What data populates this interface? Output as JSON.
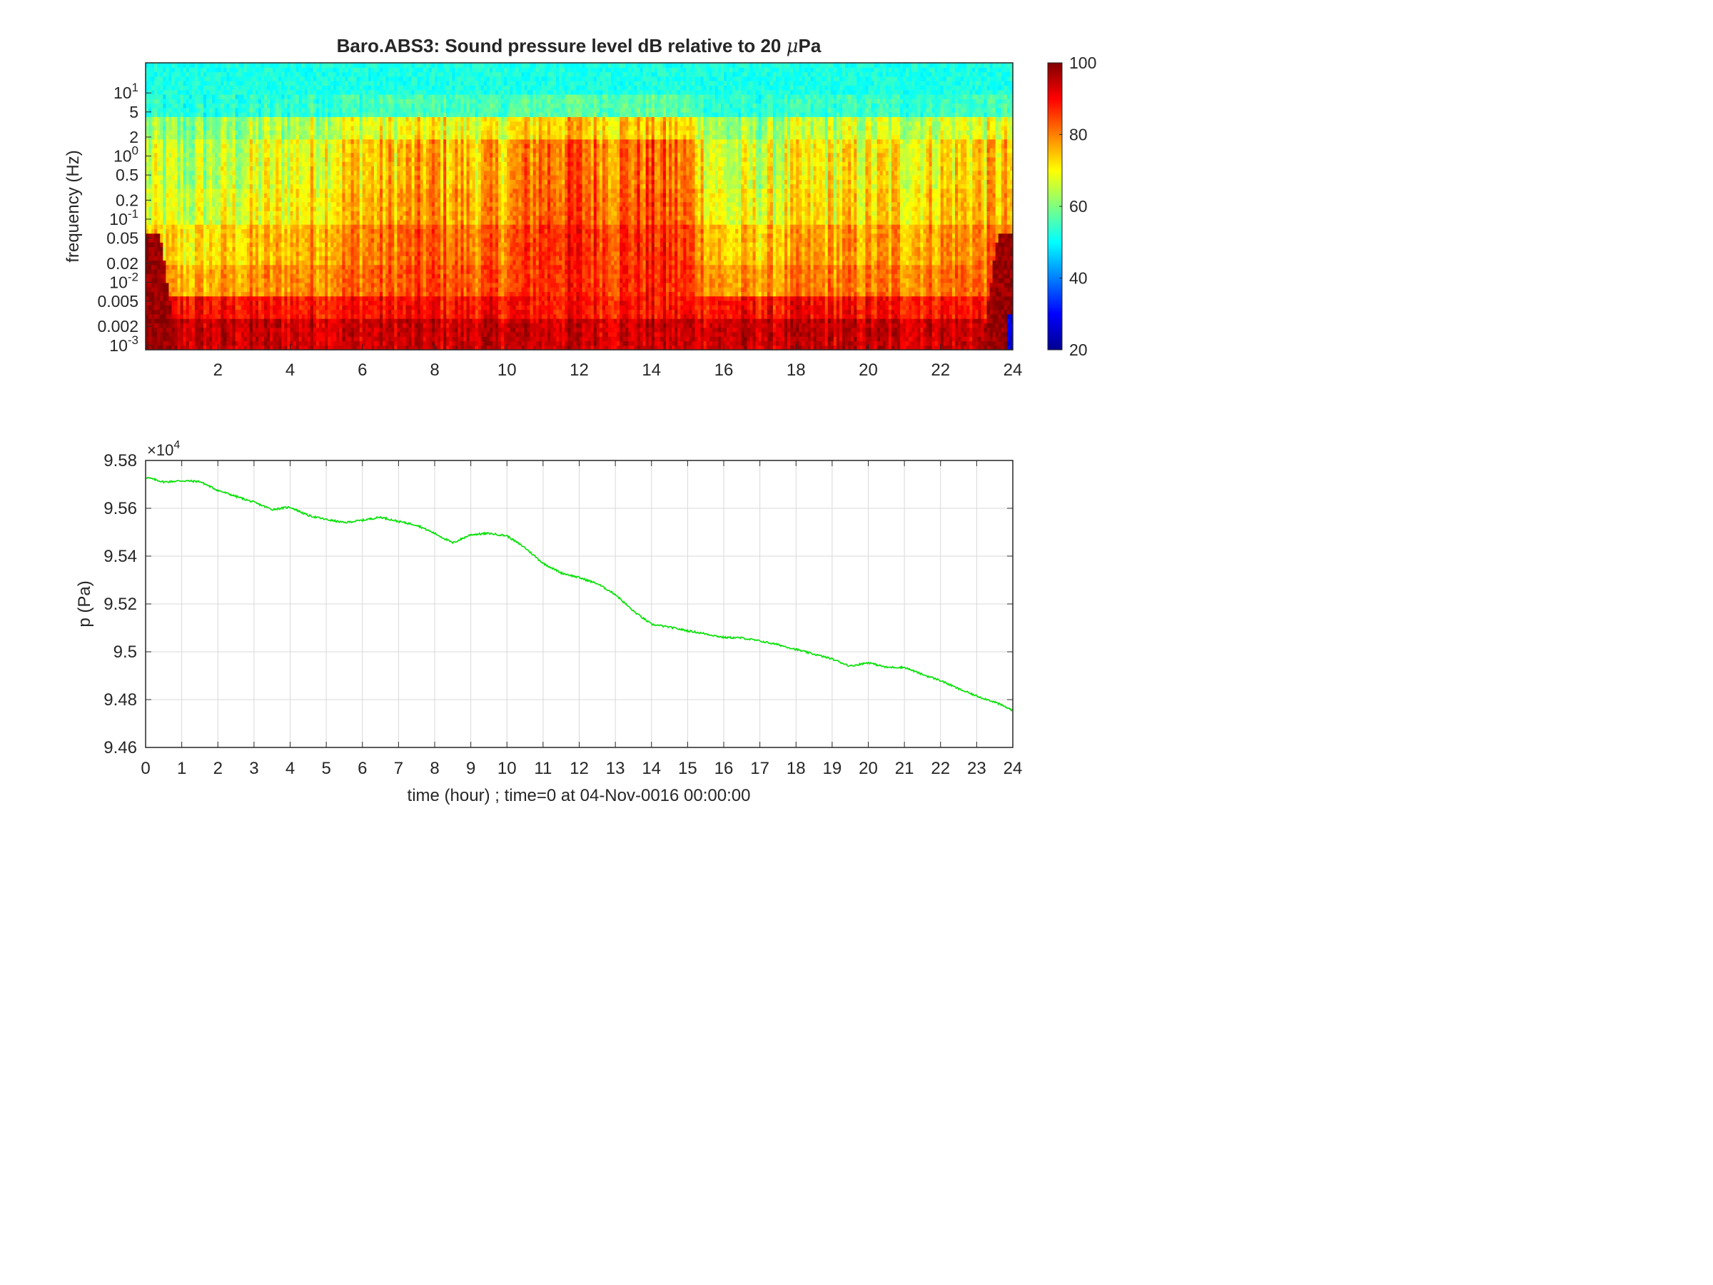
{
  "chart_data": [
    {
      "type": "heatmap",
      "title": "Baro.ABS3: Sound pressure level dB relative to 20 μPa",
      "title_main": "Baro.ABS3: Sound pressure level dB relative to 20 ",
      "title_mu": "μ",
      "title_unit": "Pa",
      "ylabel": "frequency (Hz)",
      "xlabel": "",
      "y_scale": "log",
      "xlim": [
        0,
        24
      ],
      "ylim": [
        0.00085,
        30
      ],
      "x_ticks": [
        2,
        4,
        6,
        8,
        10,
        12,
        14,
        16,
        18,
        20,
        22,
        24
      ],
      "x_tick_labels": [
        "2",
        "4",
        "6",
        "8",
        "10",
        "12",
        "14",
        "16",
        "18",
        "20",
        "22",
        "24"
      ],
      "y_ticks": [
        {
          "value": 10,
          "base": "10",
          "exp": "1"
        },
        {
          "value": 5,
          "label": "5"
        },
        {
          "value": 2,
          "label": "2"
        },
        {
          "value": 1,
          "base": "10",
          "exp": "0"
        },
        {
          "value": 0.5,
          "label": "0.5"
        },
        {
          "value": 0.2,
          "label": "0.2"
        },
        {
          "value": 0.1,
          "base": "10",
          "exp": "-1"
        },
        {
          "value": 0.05,
          "label": "0.05"
        },
        {
          "value": 0.02,
          "label": "0.02"
        },
        {
          "value": 0.01,
          "base": "10",
          "exp": "-2"
        },
        {
          "value": 0.005,
          "label": "0.005"
        },
        {
          "value": 0.002,
          "label": "0.002"
        },
        {
          "value": 0.001,
          "base": "10",
          "exp": "-3"
        }
      ],
      "colormap": "jet",
      "colorbar": {
        "range": [
          20,
          100
        ],
        "ticks": [
          100,
          80,
          60,
          40,
          20
        ],
        "tick_labels": [
          "100",
          "80",
          "60",
          "40",
          "20"
        ],
        "placement": "right"
      },
      "activity_envelope": {
        "hours": [
          0,
          1,
          2,
          3,
          4,
          5,
          6,
          7,
          8,
          9,
          10,
          11,
          12,
          13,
          14,
          15,
          16,
          17,
          18,
          19,
          20,
          21,
          22,
          23,
          24
        ],
        "level": [
          0.35,
          0.3,
          0.35,
          0.4,
          0.45,
          0.55,
          0.6,
          0.62,
          0.7,
          0.62,
          0.65,
          0.85,
          0.85,
          0.8,
          0.85,
          0.75,
          0.35,
          0.4,
          0.45,
          0.5,
          0.5,
          0.52,
          0.55,
          0.6,
          0.6
        ]
      }
    },
    {
      "type": "line",
      "title": "",
      "xlabel": "time (hour) ; time=0 at 04-Nov-0016 00:00:00",
      "ylabel": "p (Pa)",
      "y_multiplier_base": "×10",
      "y_multiplier_exp": "4",
      "xlim": [
        0,
        24
      ],
      "ylim": [
        9.46,
        9.58
      ],
      "grid": true,
      "x_ticks": [
        0,
        1,
        2,
        3,
        4,
        5,
        6,
        7,
        8,
        9,
        10,
        11,
        12,
        13,
        14,
        15,
        16,
        17,
        18,
        19,
        20,
        21,
        22,
        23,
        24
      ],
      "y_ticks": [
        9.46,
        9.48,
        9.5,
        9.52,
        9.54,
        9.56,
        9.58
      ],
      "y_tick_labels": [
        "9.46",
        "9.48",
        "9.5",
        "9.52",
        "9.54",
        "9.56",
        "9.58"
      ],
      "line_color": "#00e000",
      "series": [
        {
          "x": [
            0,
            0.5,
            1,
            1.5,
            2,
            2.5,
            3,
            3.5,
            4,
            4.5,
            5,
            5.5,
            6,
            6.5,
            7,
            7.5,
            8,
            8.5,
            9,
            9.5,
            10,
            10.5,
            11,
            11.5,
            12,
            12.5,
            13,
            13.5,
            14,
            14.5,
            15,
            15.5,
            16,
            16.5,
            17,
            17.5,
            18,
            18.5,
            19,
            19.5,
            20,
            20.5,
            21,
            21.5,
            22,
            22.5,
            23,
            23.5,
            24
          ],
          "y": [
            9.573,
            9.571,
            9.5715,
            9.5712,
            9.5675,
            9.565,
            9.5625,
            9.5595,
            9.5605,
            9.557,
            9.5553,
            9.554,
            9.555,
            9.5563,
            9.5545,
            9.553,
            9.5495,
            9.5455,
            9.549,
            9.5495,
            9.5485,
            9.5435,
            9.537,
            9.533,
            9.531,
            9.5285,
            9.524,
            9.517,
            9.5115,
            9.5103,
            9.5088,
            9.5075,
            9.506,
            9.5058,
            9.5045,
            9.503,
            9.501,
            9.499,
            9.497,
            9.494,
            9.4955,
            9.4935,
            9.4935,
            9.4905,
            9.488,
            9.4845,
            9.4815,
            9.479,
            9.4755
          ]
        }
      ]
    }
  ]
}
